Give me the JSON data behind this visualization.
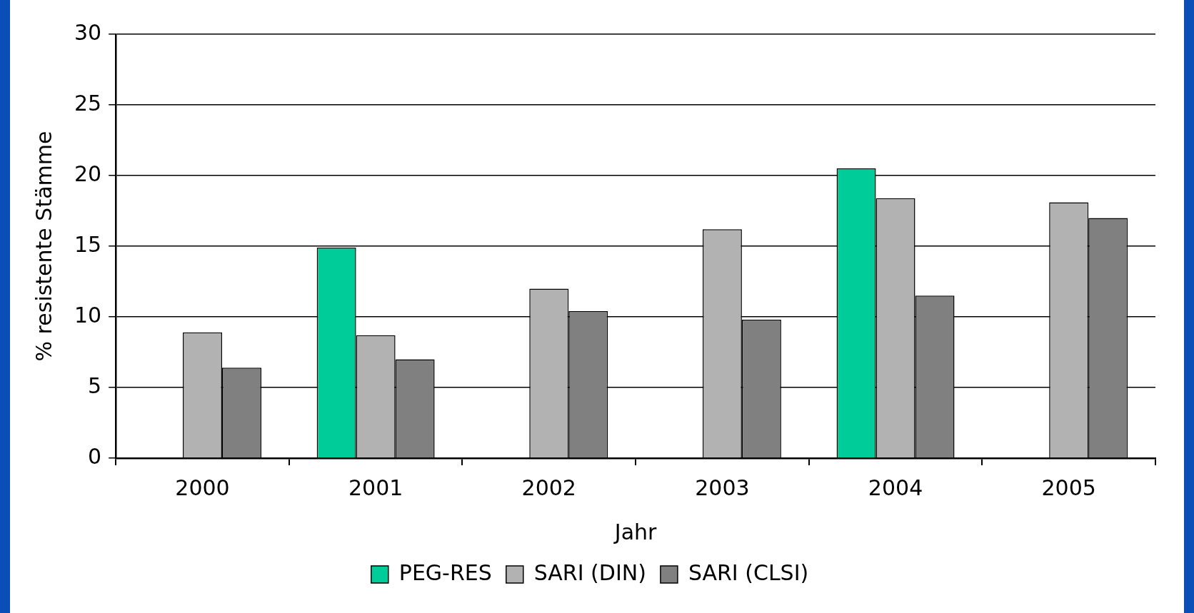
{
  "chart_data": {
    "type": "bar",
    "xlabel": "Jahr",
    "ylabel": "% resistente Stämme",
    "categories": [
      "2000",
      "2001",
      "2002",
      "2003",
      "2004",
      "2005"
    ],
    "series": [
      {
        "name": "PEG-RES",
        "color": "#00cc99",
        "values": [
          null,
          14.9,
          null,
          null,
          20.5,
          null
        ]
      },
      {
        "name": "SARI (DIN)",
        "color": "#b2b2b2",
        "values": [
          8.9,
          8.7,
          12.0,
          16.2,
          18.4,
          18.1
        ]
      },
      {
        "name": "SARI (CLSI)",
        "color": "#808080",
        "values": [
          6.4,
          7.0,
          10.4,
          9.8,
          11.5,
          17.0
        ]
      }
    ],
    "ylim": [
      0,
      30
    ],
    "yticks": [
      0,
      5,
      10,
      15,
      20,
      25,
      30
    ],
    "grid": "y",
    "legend": "bottom"
  }
}
